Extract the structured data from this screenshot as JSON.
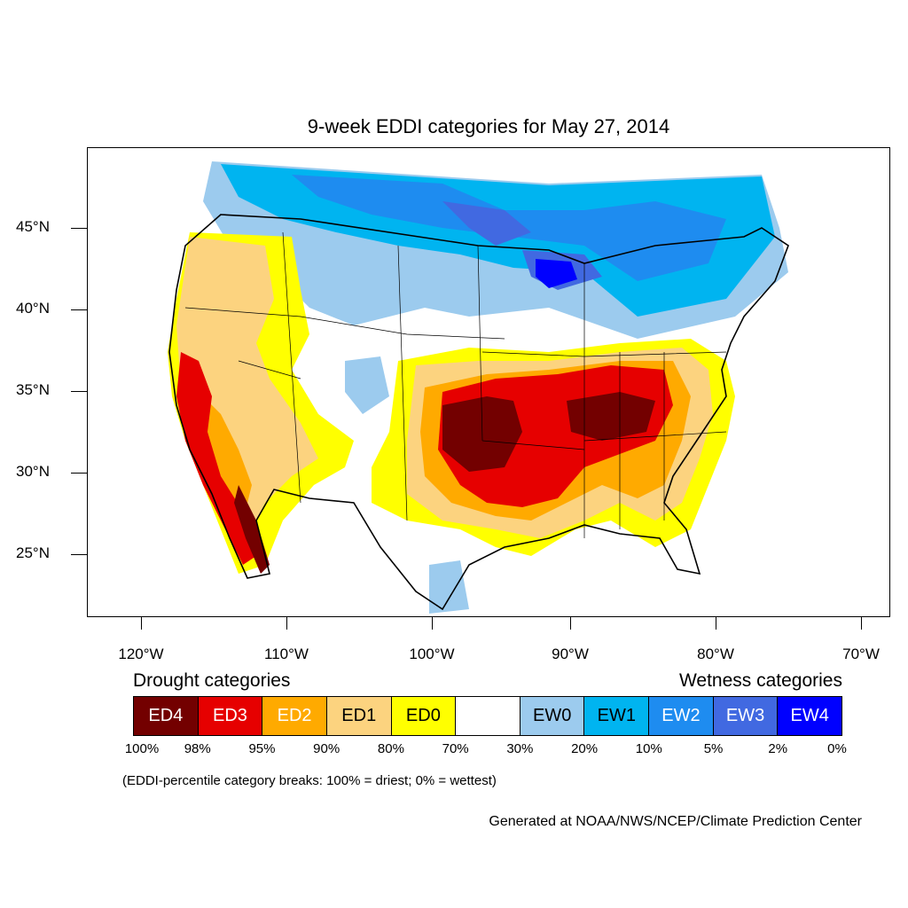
{
  "map": {
    "title": "9-week EDDI categories for May 27, 2014",
    "lat_labels": [
      "45°N",
      "40°N",
      "35°N",
      "30°N",
      "25°N"
    ],
    "lon_labels": [
      "120°W",
      "110°W",
      "100°W",
      "90°W",
      "80°W",
      "70°W"
    ]
  },
  "legend": {
    "drought_heading": "Drought categories",
    "wetness_heading": "Wetness categories",
    "categories": [
      {
        "label": "ED4",
        "color": "#730000",
        "text_color": "#ffffff"
      },
      {
        "label": "ED3",
        "color": "#e60000",
        "text_color": "#ffffff"
      },
      {
        "label": "ED2",
        "color": "#ffaa00",
        "text_color": "#ffffff"
      },
      {
        "label": "ED1",
        "color": "#fcd37f",
        "text_color": "#000000"
      },
      {
        "label": "ED0",
        "color": "#ffff00",
        "text_color": "#000000"
      },
      {
        "label": "",
        "color": "#ffffff",
        "text_color": "#000000"
      },
      {
        "label": "EW0",
        "color": "#9ccbee",
        "text_color": "#000000"
      },
      {
        "label": "EW1",
        "color": "#00b4f0",
        "text_color": "#000000"
      },
      {
        "label": "EW2",
        "color": "#1e8cf0",
        "text_color": "#ffffff"
      },
      {
        "label": "EW3",
        "color": "#4169e1",
        "text_color": "#ffffff"
      },
      {
        "label": "EW4",
        "color": "#0000ff",
        "text_color": "#ffffff"
      }
    ],
    "percentiles": [
      "100%",
      "98%",
      "95%",
      "90%",
      "80%",
      "70%",
      "30%",
      "20%",
      "10%",
      "5%",
      "2%",
      "0%"
    ],
    "note": "(EDDI-percentile category breaks: 100% = driest; 0% = wettest)"
  },
  "credit": "Generated at NOAA/NWS/NCEP/Climate Prediction Center"
}
